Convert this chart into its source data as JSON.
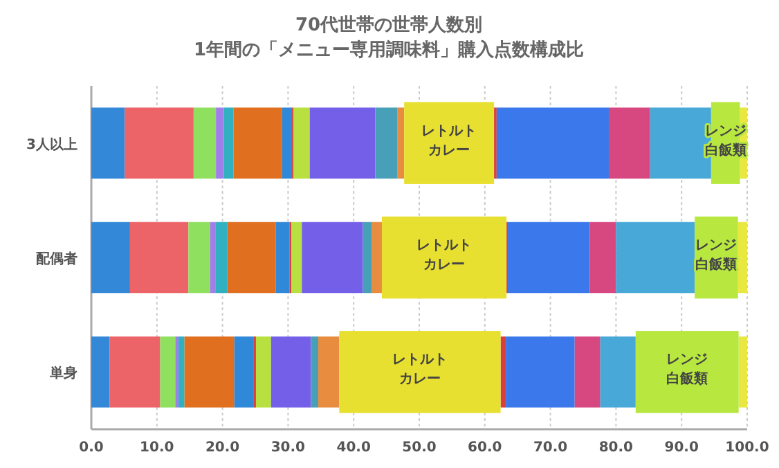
{
  "chart_data": {
    "type": "bar",
    "orientation": "horizontal",
    "stacked": true,
    "title": "70代世帯の世帯人数別\n1年間の「メニュー専用調味料」購入点数構成比",
    "categories": [
      "3人以上",
      "配偶者",
      "単身"
    ],
    "xlim": [
      0,
      100
    ],
    "xticks": [
      {
        "value": 0,
        "label": "0.0"
      },
      {
        "value": 10,
        "label": "10.0"
      },
      {
        "value": 20,
        "label": "20.0"
      },
      {
        "value": 30,
        "label": "30.0"
      },
      {
        "value": 40,
        "label": "40.0"
      },
      {
        "value": 50,
        "label": "50.0"
      },
      {
        "value": 60,
        "label": "60.0"
      },
      {
        "value": 70,
        "label": "70.0"
      },
      {
        "value": 80,
        "label": "80.0"
      },
      {
        "value": 90,
        "label": "90.0"
      },
      {
        "value": 100,
        "label": "100.0"
      }
    ],
    "grid": "x",
    "series": [
      {
        "color": "#3388d8",
        "values": [
          5.1,
          5.9,
          2.8
        ]
      },
      {
        "color": "#ec6468",
        "values": [
          10.5,
          8.9,
          7.7
        ]
      },
      {
        "color": "#90e060",
        "values": [
          3.4,
          3.3,
          2.3
        ]
      },
      {
        "color": "#a080e8",
        "values": [
          1.2,
          0.8,
          0.5
        ]
      },
      {
        "color": "#30b0c0",
        "values": [
          1.5,
          1.8,
          0.9
        ]
      },
      {
        "color": "#e07020",
        "values": [
          7.4,
          7.4,
          7.6
        ]
      },
      {
        "color": "#3088d8",
        "values": [
          1.5,
          2.1,
          2.9
        ]
      },
      {
        "color": "#d84040",
        "values": [
          0.2,
          0.3,
          0.4
        ]
      },
      {
        "color": "#b8e040",
        "values": [
          2.5,
          1.6,
          2.3
        ]
      },
      {
        "color": "#7460e8",
        "values": [
          10.0,
          9.3,
          6.1
        ]
      },
      {
        "color": "#48a0b8",
        "values": [
          3.4,
          1.4,
          1.1
        ]
      },
      {
        "color": "#e88c40",
        "values": [
          1.0,
          1.5,
          3.2
        ]
      },
      {
        "name": "レトルトカレー",
        "color": "#e8e030",
        "values": [
          13.7,
          19.0,
          24.6
        ]
      },
      {
        "color": "#d84040",
        "values": [
          0.4,
          0.2,
          0.8
        ]
      },
      {
        "color": "#3a78ec",
        "values": [
          17.1,
          12.5,
          10.5
        ]
      },
      {
        "color": "#d84880",
        "values": [
          6.3,
          4.0,
          3.9
        ]
      },
      {
        "color": "#48a8d8",
        "values": [
          9.3,
          12.0,
          5.4
        ]
      },
      {
        "name": "レンジ白飯類",
        "color": "#b8e840",
        "values": [
          4.4,
          6.6,
          15.7
        ]
      },
      {
        "color": "#e8e840",
        "values": [
          1.1,
          1.4,
          1.3
        ]
      }
    ]
  }
}
